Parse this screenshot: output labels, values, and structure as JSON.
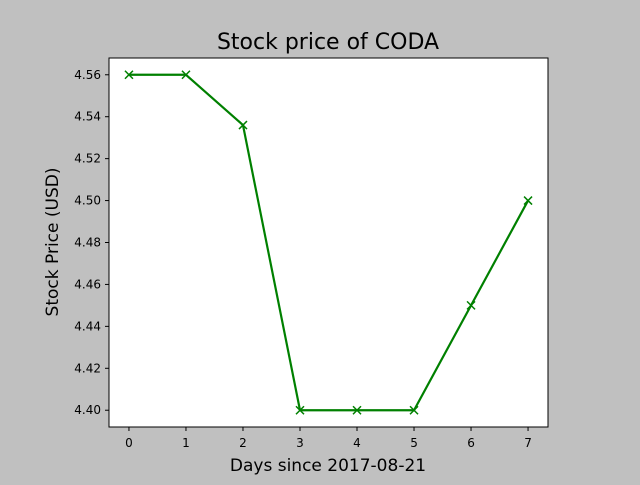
{
  "chart_data": {
    "type": "line",
    "title": "Stock price of CODA",
    "xlabel": "Days since 2017-08-21",
    "ylabel": "Stock Price (USD)",
    "x": [
      0,
      1,
      2,
      3,
      4,
      5,
      6,
      7
    ],
    "series": [
      {
        "values": [
          4.56,
          4.56,
          4.536,
          4.4,
          4.4,
          4.4,
          4.45,
          4.5
        ],
        "color": "#008000",
        "marker": "x"
      }
    ],
    "xlim": [
      -0.35,
      7.35
    ],
    "ylim": [
      4.392,
      4.568
    ],
    "xticks": [
      0,
      1,
      2,
      3,
      4,
      5,
      6,
      7
    ],
    "xtick_labels": [
      "0",
      "1",
      "2",
      "3",
      "4",
      "5",
      "6",
      "7"
    ],
    "yticks": [
      4.4,
      4.42,
      4.44,
      4.46,
      4.48,
      4.5,
      4.52,
      4.54,
      4.56
    ],
    "ytick_labels": [
      "4.40",
      "4.42",
      "4.44",
      "4.46",
      "4.48",
      "4.50",
      "4.52",
      "4.54",
      "4.56"
    ],
    "grid": false,
    "legend": false
  }
}
